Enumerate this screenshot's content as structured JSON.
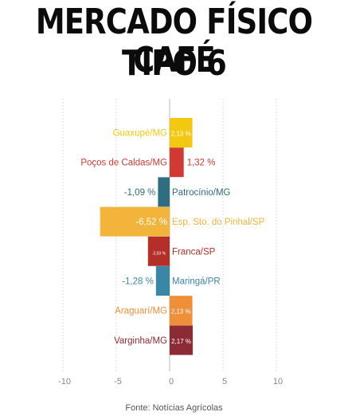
{
  "header": {
    "title_line1": "MERCADO FÍSICO CAFÉ",
    "title_line2": "TIPO 6"
  },
  "source": "Fonte: Notícias Agrícolas",
  "chart_data": {
    "type": "bar",
    "orientation": "horizontal",
    "title": "MERCADO FÍSICO CAFÉ TIPO 6",
    "xlim": [
      -10,
      10
    ],
    "xticks": [
      -10,
      -5,
      0,
      5,
      10
    ],
    "grid": true,
    "categories": [
      "Guaxupé/MG",
      "Poços de Caldas/MG",
      "Patrocínio/MG",
      "Esp. Sto. do Pinhal/SP",
      "Franca/SP",
      "Maringá/PR",
      "Araguarí/MG",
      "Varginha/MG"
    ],
    "values": [
      2.13,
      1.32,
      -1.09,
      -6.52,
      -2.03,
      -1.28,
      2.13,
      2.17
    ],
    "value_labels": [
      "2,13 %",
      "1,32 %",
      "-1,09 %",
      "-6,52 %",
      "-2,03 %",
      "-1,28 %",
      "2,13 %",
      "2,17 %"
    ],
    "colors": [
      "#f2c811",
      "#d03a33",
      "#2e6e80",
      "#f2b43a",
      "#b52f2a",
      "#3a86a5",
      "#ef8f38",
      "#8c2b35"
    ]
  }
}
